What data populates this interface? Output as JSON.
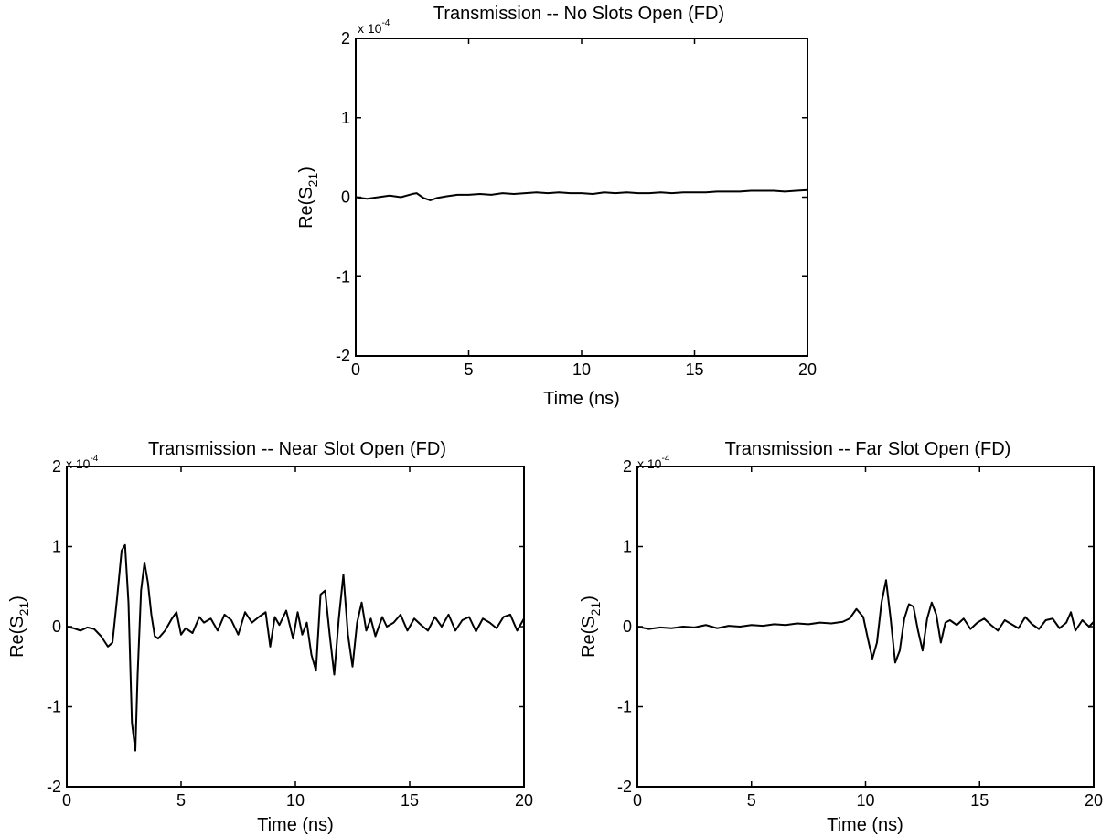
{
  "chart_data": [
    {
      "type": "line",
      "title": "Transmission -- No Slots Open (FD)",
      "xlabel": "Time (ns)",
      "ylabel": "Re(S21)",
      "ylabel_main": "Re(S",
      "ylabel_sub": "21",
      "ylabel_close": ")",
      "y_multiplier_prefix": "x 10",
      "y_multiplier_exp": "-4",
      "xlim": [
        0,
        20
      ],
      "ylim": [
        -2,
        2
      ],
      "x_ticks": [
        "0",
        "5",
        "10",
        "15",
        "20"
      ],
      "y_ticks": [
        "-2",
        "-1",
        "0",
        "1",
        "2"
      ],
      "grid": false,
      "series": [
        {
          "x": [
            0,
            0.5,
            1.0,
            1.5,
            2.0,
            2.5,
            2.7,
            3.0,
            3.3,
            3.6,
            4.0,
            4.5,
            5.0,
            5.5,
            6.0,
            6.5,
            7.0,
            7.5,
            8.0,
            8.5,
            9.0,
            9.5,
            10.0,
            10.5,
            11.0,
            11.5,
            12.0,
            12.5,
            13.0,
            13.5,
            14.0,
            14.5,
            15.0,
            15.5,
            16.0,
            16.5,
            17.0,
            17.5,
            18.0,
            18.5,
            19.0,
            19.5,
            20.0
          ],
          "y": [
            0,
            -0.02,
            0.0,
            0.02,
            0.0,
            0.04,
            0.05,
            -0.01,
            -0.04,
            -0.01,
            0.01,
            0.03,
            0.03,
            0.04,
            0.03,
            0.05,
            0.04,
            0.05,
            0.06,
            0.05,
            0.06,
            0.05,
            0.05,
            0.04,
            0.06,
            0.05,
            0.06,
            0.05,
            0.05,
            0.06,
            0.05,
            0.06,
            0.06,
            0.06,
            0.07,
            0.07,
            0.07,
            0.08,
            0.08,
            0.08,
            0.07,
            0.08,
            0.09
          ]
        }
      ]
    },
    {
      "type": "line",
      "title": "Transmission -- Near Slot Open (FD)",
      "xlabel": "Time (ns)",
      "ylabel": "Re(S21)",
      "ylabel_main": "Re(S",
      "ylabel_sub": "21",
      "ylabel_close": ")",
      "y_multiplier_prefix": "x 10",
      "y_multiplier_exp": "-4",
      "xlim": [
        0,
        20
      ],
      "ylim": [
        -2,
        2
      ],
      "x_ticks": [
        "0",
        "5",
        "10",
        "15",
        "20"
      ],
      "y_ticks": [
        "-2",
        "-1",
        "0",
        "1",
        "2"
      ],
      "grid": false,
      "series": [
        {
          "x": [
            0,
            0.3,
            0.6,
            0.9,
            1.2,
            1.5,
            1.8,
            2.0,
            2.2,
            2.4,
            2.55,
            2.7,
            2.85,
            3.0,
            3.1,
            3.25,
            3.4,
            3.55,
            3.7,
            3.85,
            4.0,
            4.3,
            4.6,
            4.8,
            5.0,
            5.2,
            5.5,
            5.8,
            6.0,
            6.3,
            6.6,
            6.9,
            7.2,
            7.5,
            7.8,
            8.1,
            8.4,
            8.7,
            8.9,
            9.1,
            9.3,
            9.6,
            9.9,
            10.1,
            10.3,
            10.5,
            10.7,
            10.9,
            11.1,
            11.3,
            11.5,
            11.7,
            11.9,
            12.1,
            12.3,
            12.5,
            12.7,
            12.9,
            13.1,
            13.3,
            13.5,
            13.8,
            14.0,
            14.3,
            14.6,
            14.9,
            15.2,
            15.5,
            15.8,
            16.1,
            16.4,
            16.7,
            17.0,
            17.3,
            17.6,
            17.9,
            18.2,
            18.5,
            18.8,
            19.1,
            19.4,
            19.7,
            20.0
          ],
          "y": [
            0,
            -0.02,
            -0.05,
            -0.01,
            -0.03,
            -0.12,
            -0.25,
            -0.2,
            0.35,
            0.95,
            1.02,
            0.3,
            -1.2,
            -1.55,
            -0.6,
            0.45,
            0.8,
            0.55,
            0.15,
            -0.12,
            -0.15,
            -0.05,
            0.1,
            0.18,
            -0.1,
            -0.02,
            -0.08,
            0.12,
            0.05,
            0.1,
            -0.05,
            0.15,
            0.08,
            -0.1,
            0.18,
            0.05,
            0.12,
            0.18,
            -0.25,
            0.12,
            0.02,
            0.2,
            -0.15,
            0.18,
            -0.1,
            0.05,
            -0.35,
            -0.55,
            0.4,
            0.45,
            -0.1,
            -0.6,
            0.1,
            0.65,
            -0.1,
            -0.5,
            0.05,
            0.3,
            -0.05,
            0.1,
            -0.12,
            0.12,
            0.0,
            0.05,
            0.15,
            -0.05,
            0.1,
            0.02,
            -0.05,
            0.12,
            0.0,
            0.15,
            -0.05,
            0.08,
            0.12,
            -0.06,
            0.1,
            0.05,
            -0.02,
            0.12,
            0.15,
            -0.05,
            0.1
          ]
        }
      ]
    },
    {
      "type": "line",
      "title": "Transmission -- Far Slot Open (FD)",
      "xlabel": "Time (ns)",
      "ylabel": "Re(S21)",
      "ylabel_main": "Re(S",
      "ylabel_sub": "21",
      "ylabel_close": ")",
      "y_multiplier_prefix": "x 10",
      "y_multiplier_exp": "-4",
      "xlim": [
        0,
        20
      ],
      "ylim": [
        -2,
        2
      ],
      "x_ticks": [
        "0",
        "5",
        "10",
        "15",
        "20"
      ],
      "y_ticks": [
        "-2",
        "-1",
        "0",
        "1",
        "2"
      ],
      "grid": false,
      "series": [
        {
          "x": [
            0,
            0.5,
            1.0,
            1.5,
            2.0,
            2.5,
            3.0,
            3.5,
            4.0,
            4.5,
            5.0,
            5.5,
            6.0,
            6.5,
            7.0,
            7.5,
            8.0,
            8.5,
            9.0,
            9.3,
            9.6,
            9.9,
            10.1,
            10.3,
            10.5,
            10.7,
            10.9,
            11.1,
            11.3,
            11.5,
            11.7,
            11.9,
            12.1,
            12.3,
            12.5,
            12.7,
            12.9,
            13.1,
            13.3,
            13.5,
            13.7,
            14.0,
            14.3,
            14.6,
            14.9,
            15.2,
            15.5,
            15.8,
            16.1,
            16.4,
            16.7,
            17.0,
            17.3,
            17.6,
            17.9,
            18.2,
            18.5,
            18.8,
            19.0,
            19.2,
            19.5,
            19.8,
            20.0
          ],
          "y": [
            0,
            -0.03,
            -0.01,
            -0.02,
            0.0,
            -0.01,
            0.02,
            -0.02,
            0.01,
            0.0,
            0.02,
            0.01,
            0.03,
            0.02,
            0.04,
            0.03,
            0.05,
            0.04,
            0.06,
            0.1,
            0.22,
            0.12,
            -0.15,
            -0.4,
            -0.2,
            0.3,
            0.58,
            0.1,
            -0.45,
            -0.3,
            0.1,
            0.28,
            0.25,
            -0.05,
            -0.3,
            0.1,
            0.3,
            0.15,
            -0.2,
            0.05,
            0.08,
            0.02,
            0.1,
            -0.03,
            0.05,
            0.1,
            0.02,
            -0.05,
            0.08,
            0.03,
            -0.02,
            0.12,
            0.03,
            -0.03,
            0.08,
            0.1,
            -0.02,
            0.05,
            0.18,
            -0.05,
            0.08,
            0.0,
            0.06
          ]
        }
      ]
    }
  ]
}
